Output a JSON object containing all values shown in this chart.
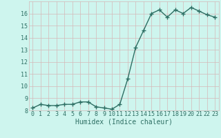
{
  "x": [
    0,
    1,
    2,
    3,
    4,
    5,
    6,
    7,
    8,
    9,
    10,
    11,
    12,
    13,
    14,
    15,
    16,
    17,
    18,
    19,
    20,
    21,
    22,
    23
  ],
  "y": [
    8.2,
    8.5,
    8.4,
    8.4,
    8.5,
    8.5,
    8.7,
    8.7,
    8.3,
    8.2,
    8.1,
    8.5,
    10.6,
    13.2,
    14.6,
    16.0,
    16.3,
    15.7,
    16.3,
    16.0,
    16.5,
    16.2,
    15.9,
    15.7
  ],
  "line_color": "#2d6e63",
  "marker": "+",
  "marker_size": 4.0,
  "line_width": 1.0,
  "bg_color": "#cef5ee",
  "grid_color": "#d4b8b8",
  "tick_color": "#2d6e63",
  "label_color": "#2d6e63",
  "xlabel": "Humidex (Indice chaleur)",
  "ylim": [
    8,
    17
  ],
  "xlim": [
    -0.5,
    23.5
  ],
  "yticks": [
    8,
    9,
    10,
    11,
    12,
    13,
    14,
    15,
    16
  ],
  "xticks": [
    0,
    1,
    2,
    3,
    4,
    5,
    6,
    7,
    8,
    9,
    10,
    11,
    12,
    13,
    14,
    15,
    16,
    17,
    18,
    19,
    20,
    21,
    22,
    23
  ],
  "xtick_labels": [
    "0",
    "1",
    "2",
    "3",
    "4",
    "5",
    "6",
    "7",
    "8",
    "9",
    "10",
    "11",
    "12",
    "13",
    "14",
    "15",
    "16",
    "17",
    "18",
    "19",
    "20",
    "21",
    "22",
    "23"
  ],
  "ytick_labels": [
    "8",
    "9",
    "10",
    "11",
    "12",
    "13",
    "14",
    "15",
    "16"
  ],
  "font_size": 6.0,
  "xlabel_font_size": 7.0,
  "marker_color": "#2d6e63"
}
